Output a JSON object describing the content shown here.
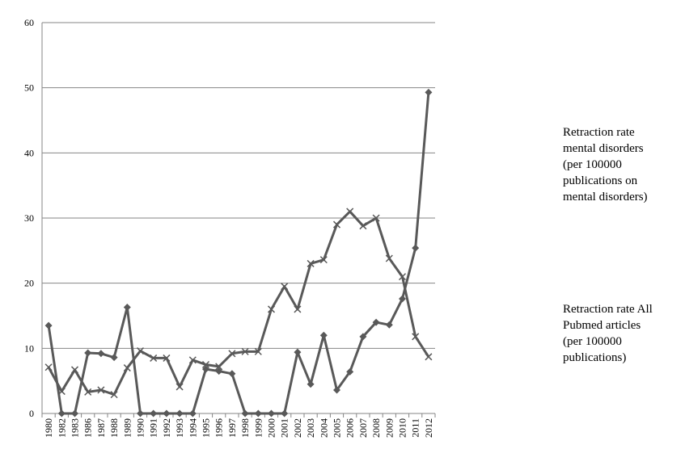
{
  "chart_data": {
    "type": "line",
    "categories": [
      "1980",
      "1982",
      "1983",
      "1986",
      "1987",
      "1988",
      "1989",
      "1990",
      "1991",
      "1992",
      "1993",
      "1994",
      "1995",
      "1996",
      "1997",
      "1998",
      "1999",
      "2000",
      "2001",
      "2002",
      "2003",
      "2004",
      "2005",
      "2006",
      "2007",
      "2008",
      "2009",
      "2010",
      "2011",
      "2012"
    ],
    "ylim": [
      0,
      60
    ],
    "yticks": [
      "0",
      "10",
      "20",
      "30",
      "40",
      "50",
      "60"
    ],
    "grid": true,
    "legend_position": "right",
    "series": [
      {
        "name_lines": [
          "Retraction rate",
          "mental disorders",
          "(per 100000",
          "publications on",
          "mental disorders)"
        ],
        "marker": "diamond",
        "color": "#595959",
        "values": [
          13.5,
          0,
          0,
          9.3,
          9.2,
          8.6,
          16.3,
          0,
          0,
          0,
          0,
          0,
          6.8,
          6.5,
          6.1,
          0,
          0,
          0,
          0,
          9.4,
          4.5,
          12.0,
          3.6,
          6.4,
          11.8,
          14.0,
          13.6,
          17.6,
          25.4,
          49.3
        ]
      },
      {
        "name_lines": [
          "Retraction rate All",
          "Pubmed articles",
          "(per 100000",
          "publications)"
        ],
        "marker": "x",
        "color": "#595959",
        "values": [
          7.1,
          3.4,
          6.7,
          3.3,
          3.6,
          2.9,
          7.0,
          9.6,
          8.5,
          8.5,
          4.1,
          8.2,
          7.5,
          7.2,
          9.2,
          9.5,
          9.5,
          16.0,
          19.5,
          16.0,
          23.0,
          23.6,
          29.0,
          31.0,
          28.8,
          30.0,
          23.8,
          21.0,
          11.8,
          8.7
        ]
      }
    ]
  }
}
